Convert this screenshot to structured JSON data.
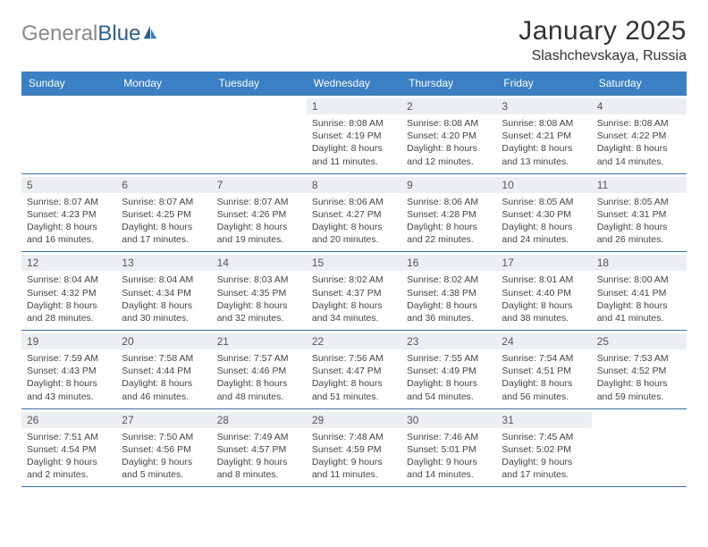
{
  "brand": {
    "part1": "General",
    "part2": "Blue"
  },
  "title": {
    "month": "January 2025",
    "location": "Slashchevskaya, Russia"
  },
  "colors": {
    "header_bg": "#3b7fc4",
    "header_text": "#ffffff",
    "daynum_bg": "#eceff2",
    "rule": "#3b6fa0",
    "body_text": "#444444",
    "logo_gray": "#8a8a8a",
    "logo_blue": "#2f5f8a"
  },
  "day_headers": [
    "Sunday",
    "Monday",
    "Tuesday",
    "Wednesday",
    "Thursday",
    "Friday",
    "Saturday"
  ],
  "weeks": [
    [
      {
        "blank": true
      },
      {
        "blank": true
      },
      {
        "blank": true
      },
      {
        "day": "1",
        "sunrise": "8:08 AM",
        "sunset": "4:19 PM",
        "dl_h": "8",
        "dl_m": "11"
      },
      {
        "day": "2",
        "sunrise": "8:08 AM",
        "sunset": "4:20 PM",
        "dl_h": "8",
        "dl_m": "12"
      },
      {
        "day": "3",
        "sunrise": "8:08 AM",
        "sunset": "4:21 PM",
        "dl_h": "8",
        "dl_m": "13"
      },
      {
        "day": "4",
        "sunrise": "8:08 AM",
        "sunset": "4:22 PM",
        "dl_h": "8",
        "dl_m": "14"
      }
    ],
    [
      {
        "day": "5",
        "sunrise": "8:07 AM",
        "sunset": "4:23 PM",
        "dl_h": "8",
        "dl_m": "16"
      },
      {
        "day": "6",
        "sunrise": "8:07 AM",
        "sunset": "4:25 PM",
        "dl_h": "8",
        "dl_m": "17"
      },
      {
        "day": "7",
        "sunrise": "8:07 AM",
        "sunset": "4:26 PM",
        "dl_h": "8",
        "dl_m": "19"
      },
      {
        "day": "8",
        "sunrise": "8:06 AM",
        "sunset": "4:27 PM",
        "dl_h": "8",
        "dl_m": "20"
      },
      {
        "day": "9",
        "sunrise": "8:06 AM",
        "sunset": "4:28 PM",
        "dl_h": "8",
        "dl_m": "22"
      },
      {
        "day": "10",
        "sunrise": "8:05 AM",
        "sunset": "4:30 PM",
        "dl_h": "8",
        "dl_m": "24"
      },
      {
        "day": "11",
        "sunrise": "8:05 AM",
        "sunset": "4:31 PM",
        "dl_h": "8",
        "dl_m": "26"
      }
    ],
    [
      {
        "day": "12",
        "sunrise": "8:04 AM",
        "sunset": "4:32 PM",
        "dl_h": "8",
        "dl_m": "28"
      },
      {
        "day": "13",
        "sunrise": "8:04 AM",
        "sunset": "4:34 PM",
        "dl_h": "8",
        "dl_m": "30"
      },
      {
        "day": "14",
        "sunrise": "8:03 AM",
        "sunset": "4:35 PM",
        "dl_h": "8",
        "dl_m": "32"
      },
      {
        "day": "15",
        "sunrise": "8:02 AM",
        "sunset": "4:37 PM",
        "dl_h": "8",
        "dl_m": "34"
      },
      {
        "day": "16",
        "sunrise": "8:02 AM",
        "sunset": "4:38 PM",
        "dl_h": "8",
        "dl_m": "36"
      },
      {
        "day": "17",
        "sunrise": "8:01 AM",
        "sunset": "4:40 PM",
        "dl_h": "8",
        "dl_m": "38"
      },
      {
        "day": "18",
        "sunrise": "8:00 AM",
        "sunset": "4:41 PM",
        "dl_h": "8",
        "dl_m": "41"
      }
    ],
    [
      {
        "day": "19",
        "sunrise": "7:59 AM",
        "sunset": "4:43 PM",
        "dl_h": "8",
        "dl_m": "43"
      },
      {
        "day": "20",
        "sunrise": "7:58 AM",
        "sunset": "4:44 PM",
        "dl_h": "8",
        "dl_m": "46"
      },
      {
        "day": "21",
        "sunrise": "7:57 AM",
        "sunset": "4:46 PM",
        "dl_h": "8",
        "dl_m": "48"
      },
      {
        "day": "22",
        "sunrise": "7:56 AM",
        "sunset": "4:47 PM",
        "dl_h": "8",
        "dl_m": "51"
      },
      {
        "day": "23",
        "sunrise": "7:55 AM",
        "sunset": "4:49 PM",
        "dl_h": "8",
        "dl_m": "54"
      },
      {
        "day": "24",
        "sunrise": "7:54 AM",
        "sunset": "4:51 PM",
        "dl_h": "8",
        "dl_m": "56"
      },
      {
        "day": "25",
        "sunrise": "7:53 AM",
        "sunset": "4:52 PM",
        "dl_h": "8",
        "dl_m": "59"
      }
    ],
    [
      {
        "day": "26",
        "sunrise": "7:51 AM",
        "sunset": "4:54 PM",
        "dl_h": "9",
        "dl_m": "2"
      },
      {
        "day": "27",
        "sunrise": "7:50 AM",
        "sunset": "4:56 PM",
        "dl_h": "9",
        "dl_m": "5"
      },
      {
        "day": "28",
        "sunrise": "7:49 AM",
        "sunset": "4:57 PM",
        "dl_h": "9",
        "dl_m": "8"
      },
      {
        "day": "29",
        "sunrise": "7:48 AM",
        "sunset": "4:59 PM",
        "dl_h": "9",
        "dl_m": "11"
      },
      {
        "day": "30",
        "sunrise": "7:46 AM",
        "sunset": "5:01 PM",
        "dl_h": "9",
        "dl_m": "14"
      },
      {
        "day": "31",
        "sunrise": "7:45 AM",
        "sunset": "5:02 PM",
        "dl_h": "9",
        "dl_m": "17"
      },
      {
        "blank": true
      }
    ]
  ]
}
